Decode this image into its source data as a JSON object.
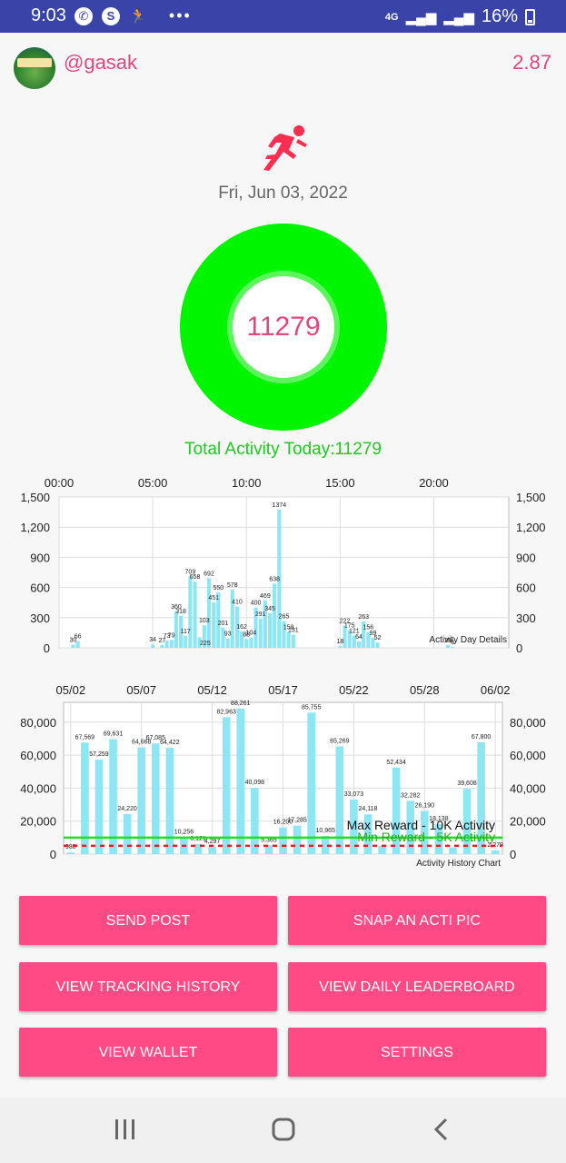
{
  "statusbar": {
    "time": "9:03",
    "network": "4G",
    "battery": "16%",
    "more": "•••"
  },
  "header": {
    "username": "@gasak",
    "balance": "2.87"
  },
  "date": "Fri, Jun 03, 2022",
  "ring": {
    "value": "11279"
  },
  "total_activity": "Total Activity Today:11279",
  "colors": {
    "accent": "#ff4a86",
    "ring": "#00f500",
    "bar": "#8de6f4",
    "text_green": "#22c822"
  },
  "buttons": {
    "send_post": "SEND POST",
    "snap_pic": "SNAP AN ACTI PIC",
    "tracking_history": "VIEW TRACKING HISTORY",
    "daily_leaderboard": "VIEW DAILY LEADERBOARD",
    "wallet": "VIEW WALLET",
    "settings": "SETTINGS"
  },
  "chart_data": [
    {
      "type": "bar",
      "description": "Activity Day Details",
      "x_ticks": [
        "00:00",
        "05:00",
        "10:00",
        "15:00",
        "20:00"
      ],
      "x_range": [
        0,
        24
      ],
      "y_ticks": [
        "0",
        "300",
        "600",
        "900",
        "1,200",
        "1,500"
      ],
      "ylim": [
        0,
        1500
      ],
      "grid": true,
      "points": [
        [
          0.75,
          30
        ],
        [
          1.0,
          66
        ],
        [
          5.0,
          34
        ],
        [
          5.5,
          27
        ],
        [
          5.75,
          73
        ],
        [
          6.0,
          79
        ],
        [
          6.25,
          360
        ],
        [
          6.5,
          318
        ],
        [
          6.75,
          117
        ],
        [
          7.0,
          709
        ],
        [
          7.25,
          658
        ],
        [
          7.5,
          103
        ],
        [
          7.75,
          225
        ],
        [
          8.0,
          692
        ],
        [
          8.25,
          451
        ],
        [
          8.5,
          550
        ],
        [
          8.75,
          201
        ],
        [
          9.0,
          93
        ],
        [
          9.25,
          578
        ],
        [
          9.5,
          410
        ],
        [
          9.75,
          162
        ],
        [
          10.0,
          88
        ],
        [
          10.25,
          104
        ],
        [
          10.5,
          400
        ],
        [
          10.75,
          291
        ],
        [
          11.0,
          469
        ],
        [
          11.25,
          345
        ],
        [
          11.5,
          638
        ],
        [
          11.75,
          1374
        ],
        [
          12.0,
          265
        ],
        [
          12.25,
          158
        ],
        [
          12.5,
          131
        ],
        [
          15.0,
          18
        ],
        [
          15.25,
          222
        ],
        [
          15.5,
          175
        ],
        [
          15.75,
          121
        ],
        [
          16.0,
          64
        ],
        [
          16.25,
          263
        ],
        [
          16.5,
          156
        ],
        [
          16.75,
          99
        ],
        [
          17.0,
          52
        ],
        [
          20.75,
          28
        ],
        [
          21.0,
          8
        ]
      ],
      "labels": [
        {
          "x": 0.75,
          "t": "30"
        },
        {
          "x": 1.0,
          "t": "66"
        },
        {
          "x": 5.0,
          "t": "34"
        },
        {
          "x": 5.5,
          "t": "27"
        },
        {
          "x": 5.75,
          "t": "73"
        },
        {
          "x": 6.0,
          "t": "79"
        },
        {
          "x": 6.25,
          "t": "360"
        },
        {
          "x": 6.5,
          "t": "318"
        },
        {
          "x": 6.75,
          "t": "117"
        },
        {
          "x": 7.0,
          "t": "709"
        },
        {
          "x": 7.25,
          "t": "658"
        },
        {
          "x": 7.75,
          "t": "103"
        },
        {
          "x": 7.8,
          "t": "225"
        },
        {
          "x": 8.0,
          "t": "692"
        },
        {
          "x": 8.25,
          "t": "451"
        },
        {
          "x": 8.5,
          "t": "550"
        },
        {
          "x": 8.75,
          "t": "201"
        },
        {
          "x": 9.0,
          "t": "93"
        },
        {
          "x": 9.25,
          "t": "578"
        },
        {
          "x": 9.5,
          "t": "410"
        },
        {
          "x": 9.75,
          "t": "162"
        },
        {
          "x": 10.0,
          "t": "88"
        },
        {
          "x": 10.25,
          "t": "104"
        },
        {
          "x": 10.5,
          "t": "400"
        },
        {
          "x": 10.75,
          "t": "291"
        },
        {
          "x": 11.0,
          "t": "469"
        },
        {
          "x": 11.25,
          "t": "345"
        },
        {
          "x": 11.5,
          "t": "638"
        },
        {
          "x": 11.75,
          "t": "1374"
        },
        {
          "x": 12.0,
          "t": "265"
        },
        {
          "x": 12.25,
          "t": "158"
        },
        {
          "x": 12.5,
          "t": "131"
        },
        {
          "x": 15.0,
          "t": "18"
        },
        {
          "x": 15.25,
          "t": "222"
        },
        {
          "x": 15.5,
          "t": "175"
        },
        {
          "x": 15.75,
          "t": "121"
        },
        {
          "x": 16.0,
          "t": "64"
        },
        {
          "x": 16.25,
          "t": "263"
        },
        {
          "x": 16.5,
          "t": "156"
        },
        {
          "x": 16.75,
          "t": "99"
        },
        {
          "x": 17.0,
          "t": "52"
        },
        {
          "x": 20.75,
          "t": "28"
        },
        {
          "x": 21.0,
          "t": "8"
        }
      ]
    },
    {
      "type": "bar",
      "description": "Activity History Chart",
      "x_ticks": [
        {
          "i": 0,
          "t": "05/02"
        },
        {
          "i": 5,
          "t": "05/07"
        },
        {
          "i": 10,
          "t": "05/12"
        },
        {
          "i": 15,
          "t": "05/17"
        },
        {
          "i": 20,
          "t": "05/22"
        },
        {
          "i": 25,
          "t": "05/28"
        },
        {
          "i": 30,
          "t": "06/02"
        }
      ],
      "y_ticks": [
        "0",
        "20,000",
        "40,000",
        "60,000",
        "80,000"
      ],
      "ylim": [
        0,
        92000
      ],
      "grid": true,
      "values": [
        980,
        67569,
        57259,
        69631,
        24220,
        64668,
        67085,
        64422,
        10256,
        6121,
        4297,
        82963,
        88261,
        40098,
        5365,
        16200,
        17285,
        85755,
        10965,
        65269,
        33073,
        24118,
        5000,
        52434,
        32282,
        26190,
        18138,
        4000,
        39608,
        67800,
        2279
      ],
      "value_labels": [
        "980",
        "67,569",
        "57,259",
        "69,631",
        "24,220",
        "64,668",
        "67,085",
        "64,422",
        "10,256",
        "6,121",
        "4,297",
        "82,963",
        "88,261",
        "40,098",
        "5,365",
        "16,200",
        "17,285",
        "85,755",
        "10,965",
        "65,269",
        "33,073",
        "24,118",
        "",
        "52,434",
        "32,282",
        "26,190",
        "18,138",
        "",
        "39,608",
        "67,800",
        "2,279"
      ],
      "limit_lines": [
        {
          "name": "Max Reward - 10K Activity",
          "value": 10000,
          "color": "#22dd22"
        },
        {
          "name": "Min Reward - 5K Activity",
          "value": 5000,
          "color": "#e02020"
        }
      ]
    }
  ]
}
